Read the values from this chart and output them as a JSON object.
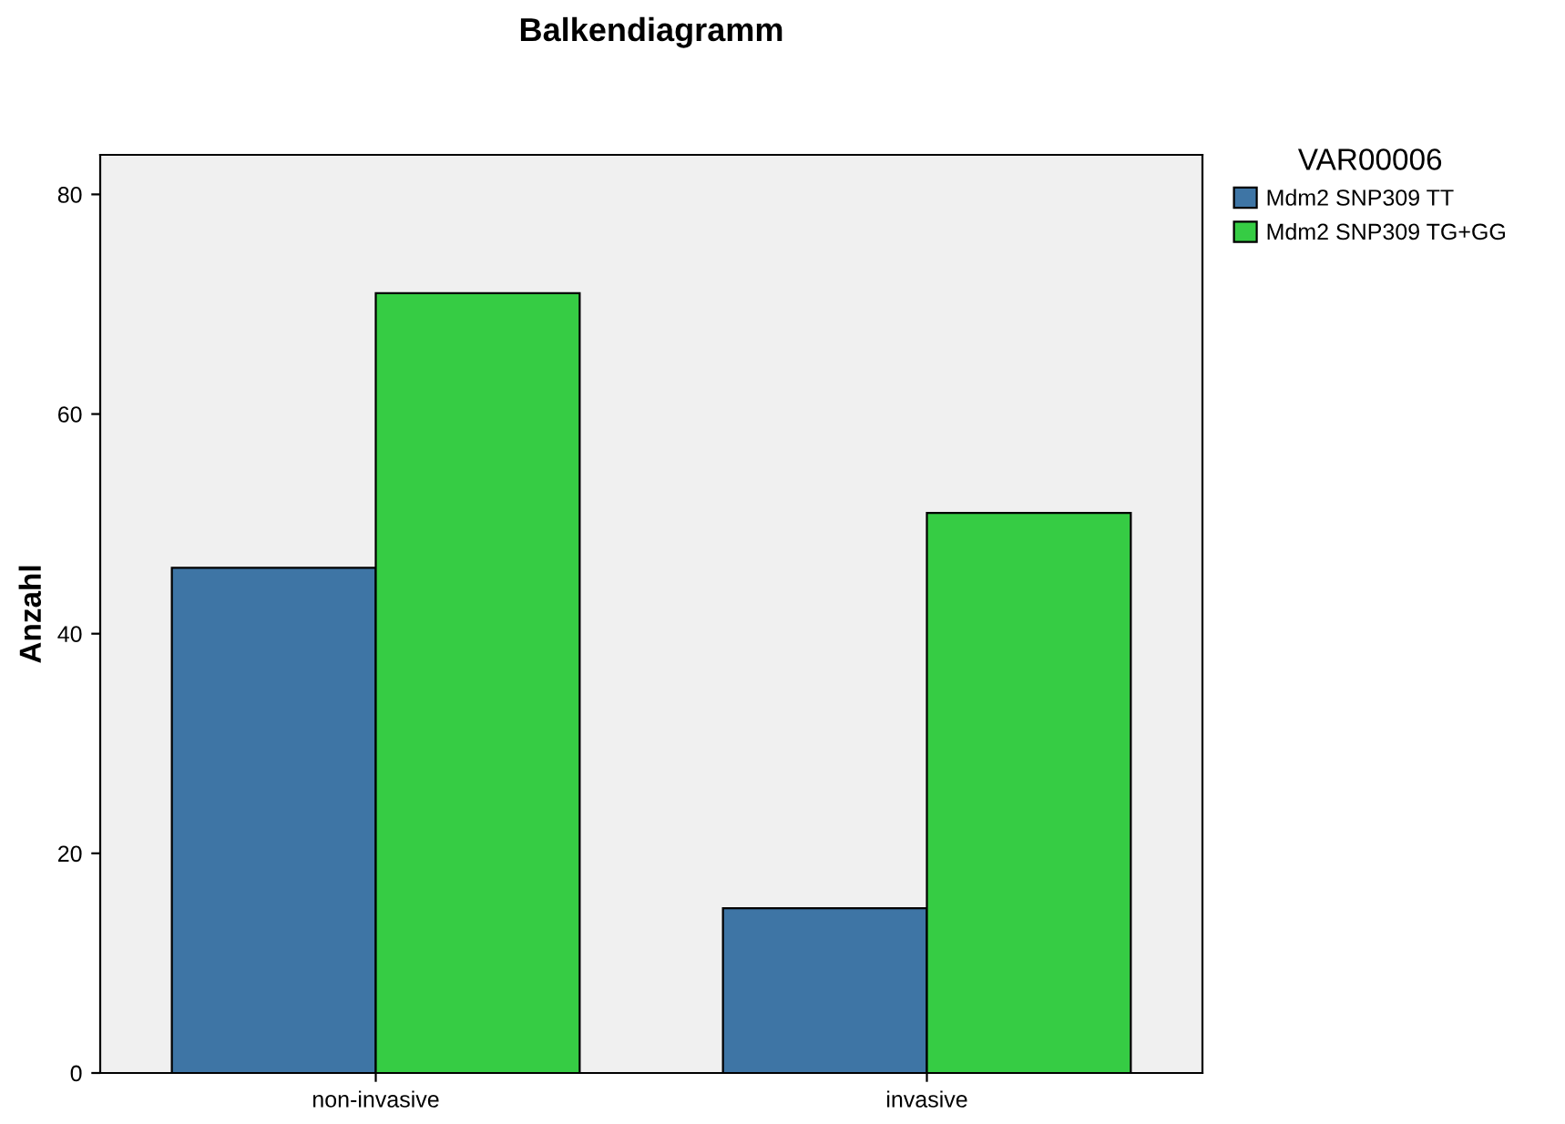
{
  "chart_data": {
    "type": "bar",
    "title": "Balkendiagramm",
    "ylabel": "Anzahl",
    "legend_title": "VAR00006",
    "categories": [
      "non-invasive",
      "invasive"
    ],
    "series": [
      {
        "name": "Mdm2 SNP309 TT",
        "color": "#3e75a5",
        "values": [
          46,
          15
        ]
      },
      {
        "name": "Mdm2 SNP309 TG+GG",
        "color": "#36cc44",
        "values": [
          71,
          51
        ]
      }
    ],
    "ylim": [
      0,
      83.6
    ],
    "yticks": [
      0,
      20,
      40,
      60,
      80
    ],
    "grid": false,
    "legend": "right"
  }
}
